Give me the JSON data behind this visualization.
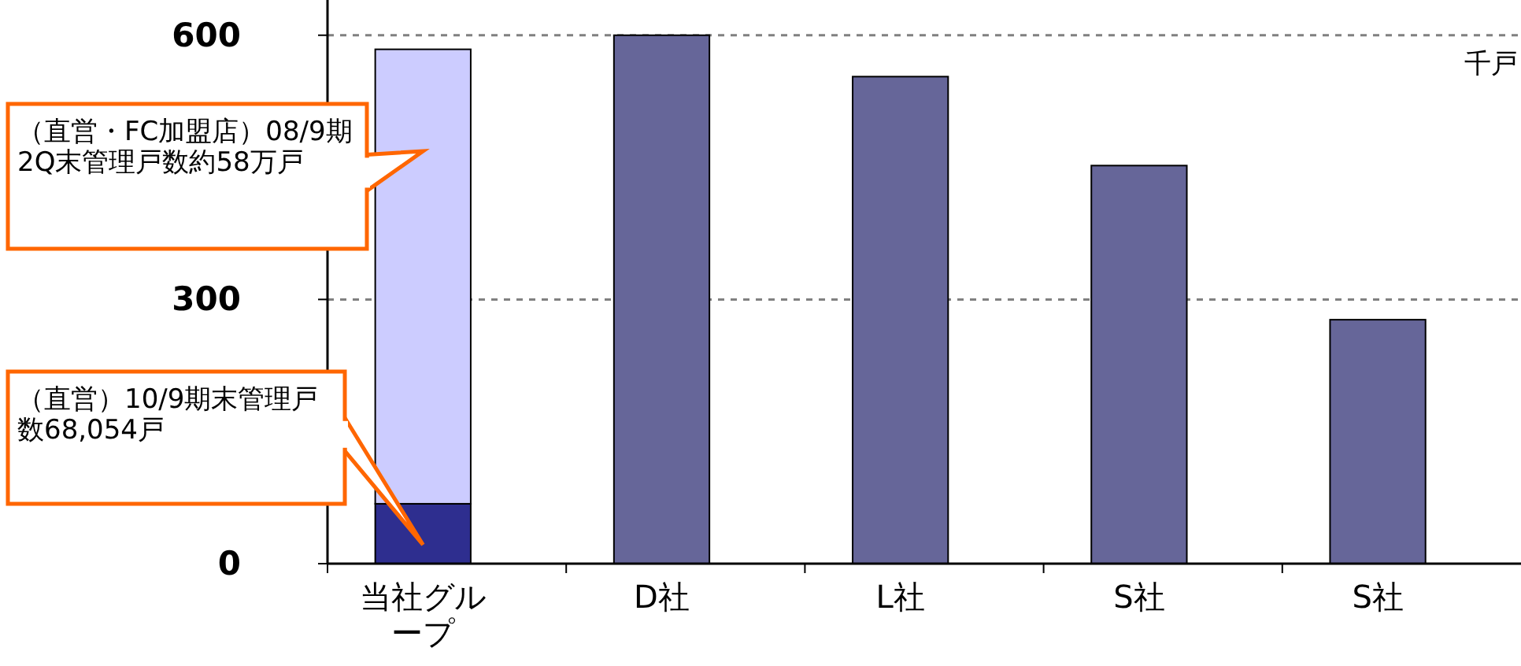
{
  "chart_data": {
    "type": "bar",
    "stacked": true,
    "ylabel": "千戸",
    "categories": [
      "当社グループ",
      "D社",
      "L社",
      "S社",
      "S社"
    ],
    "series": [
      {
        "values": [
          68,
          600,
          553,
          452,
          277
        ],
        "colors": [
          "#2e2e8f",
          "#666699",
          "#666699",
          "#666699",
          "#666699"
        ]
      },
      {
        "values": [
          516,
          null,
          null,
          null,
          null
        ],
        "color": "#ccccff"
      }
    ],
    "ylim": [
      0,
      640
    ],
    "yticks": [
      0,
      300,
      600
    ],
    "grid": "y",
    "line_style": "dashed",
    "annotations": [
      "（直営・FC加盟店）08/9期2Q末管理戸数約58万戸",
      "（直営）10/9期末管理戸数68,054戸"
    ]
  }
}
